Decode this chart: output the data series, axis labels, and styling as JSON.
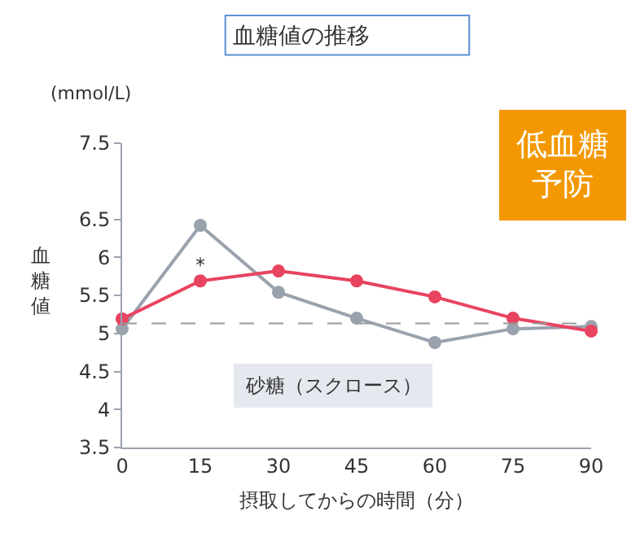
{
  "chart_data": {
    "type": "line",
    "title": "血糖値の推移",
    "xlabel": "摂取してからの時間（分）",
    "ylabel": "血糖値",
    "x": [
      0,
      15,
      30,
      45,
      60,
      75,
      90
    ],
    "series": [
      {
        "color": "#e8435f",
        "values": [
          5.19,
          5.69,
          5.82,
          5.69,
          5.48,
          5.2,
          5.03
        ]
      },
      {
        "name": "砂糖（スクロース）",
        "color": "#9aa2ad",
        "values": [
          5.06,
          6.42,
          5.54,
          5.2,
          4.88,
          5.06,
          5.09
        ]
      }
    ],
    "xlim": [
      0,
      90
    ],
    "xticks": [
      0,
      15,
      30,
      45,
      60,
      75,
      90
    ],
    "ylim": [
      3.5,
      7.5
    ],
    "yticks": [
      3.5,
      4.0,
      4.5,
      5.0,
      5.5,
      6.0,
      6.5,
      7.5
    ],
    "ref_lines": [
      {
        "axis": "y",
        "value": 5.13,
        "color": "#999999",
        "line_style": "dashed"
      }
    ],
    "annotations": [
      "(mmol/L)",
      "*",
      "低血糖予防"
    ],
    "marker": "circle",
    "line_style": "solid",
    "grid": false,
    "legend": false
  }
}
